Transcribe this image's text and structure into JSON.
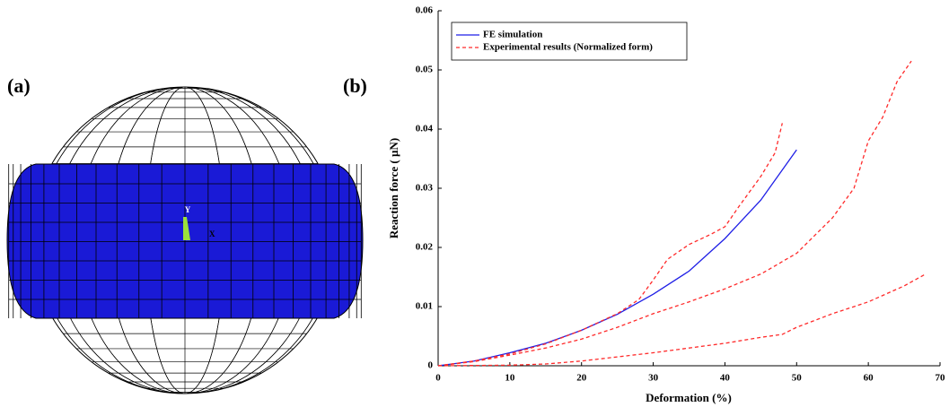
{
  "panel_labels": [
    "(a)",
    "(b)"
  ],
  "triad_labels": [
    "Y",
    "X"
  ],
  "chart_data": {
    "type": "line",
    "xlabel": "Deformation (%)",
    "ylabel": "Reaction force ( µN)",
    "xlim": [
      0,
      70
    ],
    "ylim": [
      0,
      0.06
    ],
    "xticks": [
      0,
      10,
      20,
      30,
      40,
      50,
      60,
      70
    ],
    "yticks": [
      0,
      0.01,
      0.02,
      0.03,
      0.04,
      0.05,
      0.06
    ],
    "legend": "upper left",
    "series": [
      {
        "name": "FE simulation",
        "color": "#1f1fe6",
        "dash": false,
        "x": [
          0,
          5,
          10,
          15,
          20,
          25,
          30,
          35,
          40,
          45,
          50
        ],
        "values": [
          0,
          0.0008,
          0.0022,
          0.0038,
          0.006,
          0.0087,
          0.0121,
          0.016,
          0.0215,
          0.028,
          0.0365
        ]
      },
      {
        "name": "Experimental results (Normalized form)",
        "color": "#ff2a2a",
        "dash": true,
        "x": [
          0,
          5,
          10,
          15,
          20,
          25,
          28,
          30,
          32,
          35,
          38,
          40,
          42,
          45,
          47,
          48
        ],
        "values": [
          0,
          0.0008,
          0.002,
          0.0037,
          0.006,
          0.0088,
          0.0112,
          0.0145,
          0.018,
          0.0205,
          0.0222,
          0.0235,
          0.027,
          0.032,
          0.036,
          0.041
        ]
      },
      {
        "color": "#ff2a2a",
        "dash": true,
        "x": [
          0,
          5,
          10,
          15,
          20,
          25,
          30,
          35,
          40,
          45,
          50,
          55,
          58,
          60,
          62,
          64,
          66
        ],
        "values": [
          0,
          0.0007,
          0.0018,
          0.003,
          0.0045,
          0.0065,
          0.0088,
          0.0108,
          0.013,
          0.0155,
          0.019,
          0.025,
          0.03,
          0.038,
          0.042,
          0.048,
          0.0515
        ]
      },
      {
        "color": "#ff2a2a",
        "dash": true,
        "x": [
          0,
          10,
          15,
          20,
          25,
          30,
          35,
          40,
          45,
          48,
          50,
          55,
          60,
          65,
          68
        ],
        "values": [
          0,
          0.0001,
          0.0003,
          0.0008,
          0.0015,
          0.0022,
          0.003,
          0.0038,
          0.0048,
          0.0053,
          0.0065,
          0.0088,
          0.0108,
          0.0135,
          0.0155
        ]
      }
    ]
  }
}
